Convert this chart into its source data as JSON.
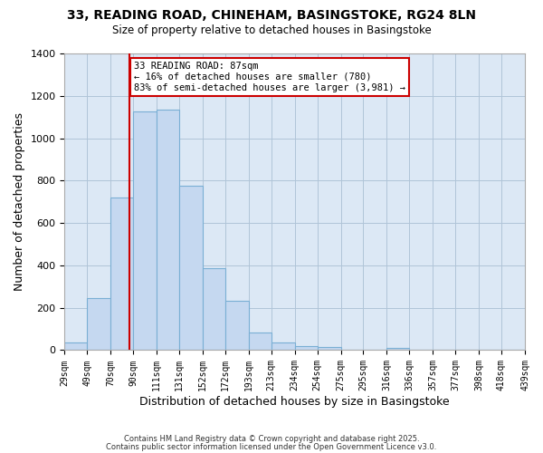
{
  "title_line1": "33, READING ROAD, CHINEHAM, BASINGSTOKE, RG24 8LN",
  "title_line2": "Size of property relative to detached houses in Basingstoke",
  "xlabel": "Distribution of detached houses by size in Basingstoke",
  "ylabel": "Number of detached properties",
  "bar_edges": [
    29,
    49,
    70,
    90,
    111,
    131,
    152,
    172,
    193,
    213,
    234,
    254,
    275,
    295,
    316,
    336,
    357,
    377,
    398,
    418,
    439
  ],
  "bar_heights": [
    35,
    245,
    720,
    1125,
    1135,
    775,
    385,
    235,
    85,
    35,
    18,
    14,
    0,
    0,
    10,
    0,
    0,
    0,
    0,
    0
  ],
  "bar_color": "#c5d8f0",
  "bar_edge_color": "#7aafd4",
  "vline_x": 87,
  "vline_color": "#cc0000",
  "ylim": [
    0,
    1400
  ],
  "yticks": [
    0,
    200,
    400,
    600,
    800,
    1000,
    1200,
    1400
  ],
  "annotation_title": "33 READING ROAD: 87sqm",
  "annotation_line2": "← 16% of detached houses are smaller (780)",
  "annotation_line3": "83% of semi-detached houses are larger (3,981) →",
  "annotation_box_color": "#cc0000",
  "annotation_box_fill": "#ffffff",
  "footer_line1": "Contains HM Land Registry data © Crown copyright and database right 2025.",
  "footer_line2": "Contains public sector information licensed under the Open Government Licence v3.0.",
  "background_color": "#ffffff",
  "plot_bg_color": "#dce8f5",
  "grid_color": "#b0c4d8",
  "tick_labels": [
    "29sqm",
    "49sqm",
    "70sqm",
    "90sqm",
    "111sqm",
    "131sqm",
    "152sqm",
    "172sqm",
    "193sqm",
    "213sqm",
    "234sqm",
    "254sqm",
    "275sqm",
    "295sqm",
    "316sqm",
    "336sqm",
    "357sqm",
    "377sqm",
    "398sqm",
    "418sqm",
    "439sqm"
  ]
}
